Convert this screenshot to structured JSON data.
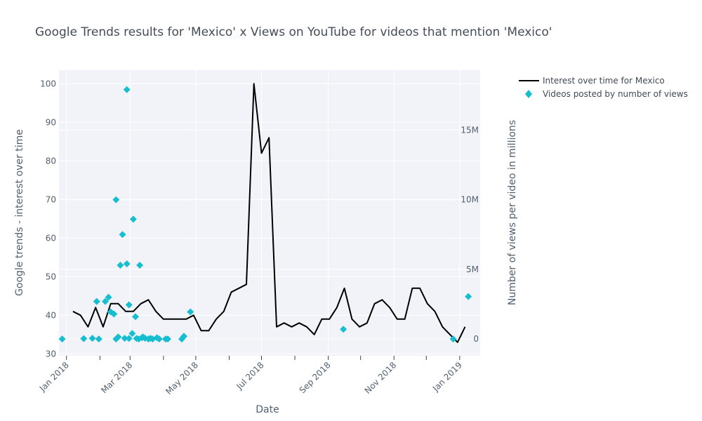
{
  "chart_data": {
    "title": "Google Trends results for 'Mexico' x Views on YouTube for videos that mention 'Mexico'",
    "xlabel": "Date",
    "ylabel_left": "Google trends - interest over time",
    "ylabel_right": "Number of views per video in millions",
    "x_axis": {
      "type": "date",
      "range": [
        "2017-12-25",
        "2019-01-20"
      ],
      "ticks": [
        {
          "date": "2018-01-01",
          "label": "Jan 2018"
        },
        {
          "date": "2018-03-01",
          "label": "Mar 2018"
        },
        {
          "date": "2018-05-01",
          "label": "May 2018"
        },
        {
          "date": "2018-07-01",
          "label": "Jul 2018"
        },
        {
          "date": "2018-09-01",
          "label": "Sep 2018"
        },
        {
          "date": "2018-11-01",
          "label": "Nov 2018"
        },
        {
          "date": "2019-01-01",
          "label": "Jan 2019"
        }
      ]
    },
    "y_left": {
      "range": [
        29.5,
        103.5
      ],
      "ticks": [
        30,
        40,
        50,
        60,
        70,
        80,
        90,
        100
      ]
    },
    "y_right": {
      "range": [
        -1200000,
        19300000
      ],
      "ticks": [
        {
          "value": 0,
          "label": "0"
        },
        {
          "value": 5000000,
          "label": "5M"
        },
        {
          "value": 10000000,
          "label": "10M"
        },
        {
          "value": 15000000,
          "label": "15M"
        }
      ]
    },
    "grid": true,
    "legend_position": "top-right",
    "series": [
      {
        "name": "Interest over time for Mexico",
        "type": "line",
        "axis": "left",
        "color": "#000000",
        "points": [
          [
            "2018-01-07",
            41
          ],
          [
            "2018-01-14",
            40
          ],
          [
            "2018-01-21",
            37
          ],
          [
            "2018-01-28",
            42
          ],
          [
            "2018-02-04",
            37
          ],
          [
            "2018-02-11",
            43
          ],
          [
            "2018-02-18",
            43
          ],
          [
            "2018-02-25",
            41
          ],
          [
            "2018-03-04",
            41
          ],
          [
            "2018-03-11",
            43
          ],
          [
            "2018-03-18",
            44
          ],
          [
            "2018-03-25",
            41
          ],
          [
            "2018-04-01",
            39
          ],
          [
            "2018-04-08",
            39
          ],
          [
            "2018-04-15",
            39
          ],
          [
            "2018-04-22",
            39
          ],
          [
            "2018-04-29",
            40
          ],
          [
            "2018-05-06",
            36
          ],
          [
            "2018-05-13",
            36
          ],
          [
            "2018-05-20",
            39
          ],
          [
            "2018-05-27",
            41
          ],
          [
            "2018-06-03",
            46
          ],
          [
            "2018-06-10",
            47
          ],
          [
            "2018-06-17",
            48
          ],
          [
            "2018-06-24",
            100
          ],
          [
            "2018-07-01",
            82
          ],
          [
            "2018-07-08",
            86
          ],
          [
            "2018-07-15",
            37
          ],
          [
            "2018-07-22",
            38
          ],
          [
            "2018-07-29",
            37
          ],
          [
            "2018-08-05",
            38
          ],
          [
            "2018-08-12",
            37
          ],
          [
            "2018-08-19",
            35
          ],
          [
            "2018-08-26",
            39
          ],
          [
            "2018-09-02",
            39
          ],
          [
            "2018-09-09",
            42
          ],
          [
            "2018-09-16",
            47
          ],
          [
            "2018-09-23",
            39
          ],
          [
            "2018-09-30",
            37
          ],
          [
            "2018-10-07",
            38
          ],
          [
            "2018-10-14",
            43
          ],
          [
            "2018-10-21",
            44
          ],
          [
            "2018-10-28",
            42
          ],
          [
            "2018-11-04",
            39
          ],
          [
            "2018-11-11",
            39
          ],
          [
            "2018-11-18",
            47
          ],
          [
            "2018-11-25",
            47
          ],
          [
            "2018-12-02",
            43
          ],
          [
            "2018-12-09",
            41
          ],
          [
            "2018-12-16",
            37
          ],
          [
            "2018-12-23",
            35
          ],
          [
            "2018-12-30",
            33
          ],
          [
            "2019-01-06",
            37
          ]
        ]
      },
      {
        "name": "Videos posted by number of views",
        "type": "scatter",
        "axis": "right",
        "color": "#17becf",
        "marker": "diamond",
        "points": [
          [
            "2017-12-28",
            0
          ],
          [
            "2018-01-17",
            30000
          ],
          [
            "2018-01-25",
            50000
          ],
          [
            "2018-01-29",
            2700000
          ],
          [
            "2018-01-31",
            0
          ],
          [
            "2018-02-06",
            2700000
          ],
          [
            "2018-02-09",
            3000000
          ],
          [
            "2018-02-11",
            1950000
          ],
          [
            "2018-02-14",
            1800000
          ],
          [
            "2018-02-16",
            10000000
          ],
          [
            "2018-02-16",
            0
          ],
          [
            "2018-02-18",
            150000
          ],
          [
            "2018-02-20",
            5300000
          ],
          [
            "2018-02-22",
            7500000
          ],
          [
            "2018-02-24",
            50000
          ],
          [
            "2018-02-26",
            17900000
          ],
          [
            "2018-02-26",
            5400000
          ],
          [
            "2018-02-28",
            2450000
          ],
          [
            "2018-02-28",
            40000
          ],
          [
            "2018-03-03",
            400000
          ],
          [
            "2018-03-04",
            8600000
          ],
          [
            "2018-03-06",
            1600000
          ],
          [
            "2018-03-07",
            40000
          ],
          [
            "2018-03-09",
            0
          ],
          [
            "2018-03-10",
            5300000
          ],
          [
            "2018-03-12",
            100000
          ],
          [
            "2018-03-13",
            150000
          ],
          [
            "2018-03-15",
            50000
          ],
          [
            "2018-03-18",
            0
          ],
          [
            "2018-03-20",
            50000
          ],
          [
            "2018-03-22",
            0
          ],
          [
            "2018-03-26",
            100000
          ],
          [
            "2018-03-28",
            0
          ],
          [
            "2018-04-03",
            0
          ],
          [
            "2018-04-05",
            0
          ],
          [
            "2018-04-18",
            0
          ],
          [
            "2018-04-20",
            200000
          ],
          [
            "2018-04-26",
            1950000
          ],
          [
            "2018-09-15",
            700000
          ],
          [
            "2018-12-26",
            0
          ],
          [
            "2019-01-09",
            3050000
          ]
        ]
      }
    ]
  }
}
